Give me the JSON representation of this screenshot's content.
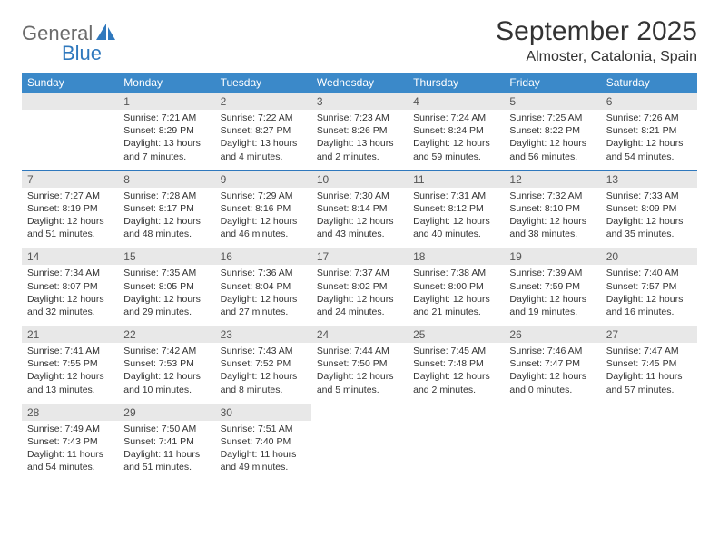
{
  "brand": {
    "part1": "General",
    "part2": "Blue"
  },
  "title": "September 2025",
  "location": "Almoster, Catalonia, Spain",
  "colors": {
    "header_bg": "#3b89c9",
    "header_text": "#ffffff",
    "rule": "#2f78bd",
    "daynum_bg": "#e8e8e8",
    "logo_gray": "#6b6b6b",
    "logo_blue": "#2f78bd",
    "body_text": "#333333"
  },
  "fonts": {
    "title_pt": 30,
    "location_pt": 16,
    "dayheader_pt": 12,
    "cell_pt": 10.5
  },
  "day_names": [
    "Sunday",
    "Monday",
    "Tuesday",
    "Wednesday",
    "Thursday",
    "Friday",
    "Saturday"
  ],
  "weeks": [
    [
      null,
      {
        "n": "1",
        "sr": "Sunrise: 7:21 AM",
        "ss": "Sunset: 8:29 PM",
        "dl": "Daylight: 13 hours and 7 minutes."
      },
      {
        "n": "2",
        "sr": "Sunrise: 7:22 AM",
        "ss": "Sunset: 8:27 PM",
        "dl": "Daylight: 13 hours and 4 minutes."
      },
      {
        "n": "3",
        "sr": "Sunrise: 7:23 AM",
        "ss": "Sunset: 8:26 PM",
        "dl": "Daylight: 13 hours and 2 minutes."
      },
      {
        "n": "4",
        "sr": "Sunrise: 7:24 AM",
        "ss": "Sunset: 8:24 PM",
        "dl": "Daylight: 12 hours and 59 minutes."
      },
      {
        "n": "5",
        "sr": "Sunrise: 7:25 AM",
        "ss": "Sunset: 8:22 PM",
        "dl": "Daylight: 12 hours and 56 minutes."
      },
      {
        "n": "6",
        "sr": "Sunrise: 7:26 AM",
        "ss": "Sunset: 8:21 PM",
        "dl": "Daylight: 12 hours and 54 minutes."
      }
    ],
    [
      {
        "n": "7",
        "sr": "Sunrise: 7:27 AM",
        "ss": "Sunset: 8:19 PM",
        "dl": "Daylight: 12 hours and 51 minutes."
      },
      {
        "n": "8",
        "sr": "Sunrise: 7:28 AM",
        "ss": "Sunset: 8:17 PM",
        "dl": "Daylight: 12 hours and 48 minutes."
      },
      {
        "n": "9",
        "sr": "Sunrise: 7:29 AM",
        "ss": "Sunset: 8:16 PM",
        "dl": "Daylight: 12 hours and 46 minutes."
      },
      {
        "n": "10",
        "sr": "Sunrise: 7:30 AM",
        "ss": "Sunset: 8:14 PM",
        "dl": "Daylight: 12 hours and 43 minutes."
      },
      {
        "n": "11",
        "sr": "Sunrise: 7:31 AM",
        "ss": "Sunset: 8:12 PM",
        "dl": "Daylight: 12 hours and 40 minutes."
      },
      {
        "n": "12",
        "sr": "Sunrise: 7:32 AM",
        "ss": "Sunset: 8:10 PM",
        "dl": "Daylight: 12 hours and 38 minutes."
      },
      {
        "n": "13",
        "sr": "Sunrise: 7:33 AM",
        "ss": "Sunset: 8:09 PM",
        "dl": "Daylight: 12 hours and 35 minutes."
      }
    ],
    [
      {
        "n": "14",
        "sr": "Sunrise: 7:34 AM",
        "ss": "Sunset: 8:07 PM",
        "dl": "Daylight: 12 hours and 32 minutes."
      },
      {
        "n": "15",
        "sr": "Sunrise: 7:35 AM",
        "ss": "Sunset: 8:05 PM",
        "dl": "Daylight: 12 hours and 29 minutes."
      },
      {
        "n": "16",
        "sr": "Sunrise: 7:36 AM",
        "ss": "Sunset: 8:04 PM",
        "dl": "Daylight: 12 hours and 27 minutes."
      },
      {
        "n": "17",
        "sr": "Sunrise: 7:37 AM",
        "ss": "Sunset: 8:02 PM",
        "dl": "Daylight: 12 hours and 24 minutes."
      },
      {
        "n": "18",
        "sr": "Sunrise: 7:38 AM",
        "ss": "Sunset: 8:00 PM",
        "dl": "Daylight: 12 hours and 21 minutes."
      },
      {
        "n": "19",
        "sr": "Sunrise: 7:39 AM",
        "ss": "Sunset: 7:59 PM",
        "dl": "Daylight: 12 hours and 19 minutes."
      },
      {
        "n": "20",
        "sr": "Sunrise: 7:40 AM",
        "ss": "Sunset: 7:57 PM",
        "dl": "Daylight: 12 hours and 16 minutes."
      }
    ],
    [
      {
        "n": "21",
        "sr": "Sunrise: 7:41 AM",
        "ss": "Sunset: 7:55 PM",
        "dl": "Daylight: 12 hours and 13 minutes."
      },
      {
        "n": "22",
        "sr": "Sunrise: 7:42 AM",
        "ss": "Sunset: 7:53 PM",
        "dl": "Daylight: 12 hours and 10 minutes."
      },
      {
        "n": "23",
        "sr": "Sunrise: 7:43 AM",
        "ss": "Sunset: 7:52 PM",
        "dl": "Daylight: 12 hours and 8 minutes."
      },
      {
        "n": "24",
        "sr": "Sunrise: 7:44 AM",
        "ss": "Sunset: 7:50 PM",
        "dl": "Daylight: 12 hours and 5 minutes."
      },
      {
        "n": "25",
        "sr": "Sunrise: 7:45 AM",
        "ss": "Sunset: 7:48 PM",
        "dl": "Daylight: 12 hours and 2 minutes."
      },
      {
        "n": "26",
        "sr": "Sunrise: 7:46 AM",
        "ss": "Sunset: 7:47 PM",
        "dl": "Daylight: 12 hours and 0 minutes."
      },
      {
        "n": "27",
        "sr": "Sunrise: 7:47 AM",
        "ss": "Sunset: 7:45 PM",
        "dl": "Daylight: 11 hours and 57 minutes."
      }
    ],
    [
      {
        "n": "28",
        "sr": "Sunrise: 7:49 AM",
        "ss": "Sunset: 7:43 PM",
        "dl": "Daylight: 11 hours and 54 minutes."
      },
      {
        "n": "29",
        "sr": "Sunrise: 7:50 AM",
        "ss": "Sunset: 7:41 PM",
        "dl": "Daylight: 11 hours and 51 minutes."
      },
      {
        "n": "30",
        "sr": "Sunrise: 7:51 AM",
        "ss": "Sunset: 7:40 PM",
        "dl": "Daylight: 11 hours and 49 minutes."
      },
      null,
      null,
      null,
      null
    ]
  ]
}
